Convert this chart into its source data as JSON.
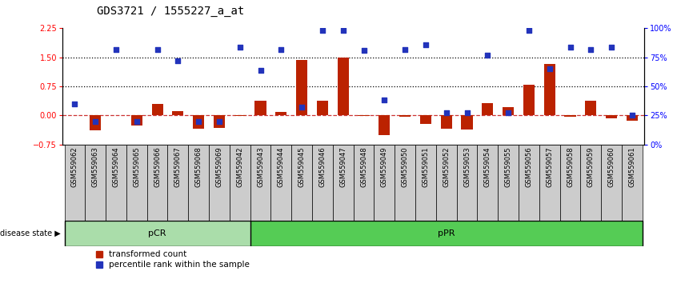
{
  "title": "GDS3721 / 1555227_a_at",
  "samples": [
    "GSM559062",
    "GSM559063",
    "GSM559064",
    "GSM559065",
    "GSM559066",
    "GSM559067",
    "GSM559068",
    "GSM559069",
    "GSM559042",
    "GSM559043",
    "GSM559044",
    "GSM559045",
    "GSM559046",
    "GSM559047",
    "GSM559048",
    "GSM559049",
    "GSM559050",
    "GSM559051",
    "GSM559052",
    "GSM559053",
    "GSM559054",
    "GSM559055",
    "GSM559056",
    "GSM559057",
    "GSM559058",
    "GSM559059",
    "GSM559060",
    "GSM559061"
  ],
  "transformed_count": [
    0.0,
    -0.38,
    0.0,
    -0.27,
    0.3,
    0.1,
    -0.35,
    -0.32,
    -0.01,
    0.37,
    0.08,
    1.43,
    0.38,
    1.5,
    -0.02,
    -0.52,
    -0.03,
    -0.22,
    -0.35,
    -0.37,
    0.32,
    0.22,
    0.8,
    1.32,
    -0.03,
    0.37,
    -0.07,
    -0.13
  ],
  "percentile_rank_pct": [
    35,
    20,
    82,
    20,
    82,
    72,
    20,
    20,
    84,
    64,
    82,
    32,
    98,
    98,
    81,
    38,
    82,
    86,
    27,
    27,
    77,
    27,
    98,
    65,
    84,
    82,
    84,
    25
  ],
  "pCR_count": 9,
  "pPR_count": 19,
  "ylim_left": [
    -0.75,
    2.25
  ],
  "yticks_left": [
    -0.75,
    0.0,
    0.75,
    1.5,
    2.25
  ],
  "yticks_right_pct": [
    0,
    25,
    50,
    75,
    100
  ],
  "hlines": [
    0.75,
    1.5
  ],
  "bar_color": "#bb2200",
  "dot_color": "#2233bb",
  "zero_line_color": "#cc3333",
  "background_color": "#ffffff",
  "pCR_color": "#aaddaa",
  "pPR_color": "#55cc55",
  "label_bg_color": "#cccccc",
  "title_fontsize": 10,
  "tick_fontsize": 6,
  "legend_fontsize": 7.5
}
